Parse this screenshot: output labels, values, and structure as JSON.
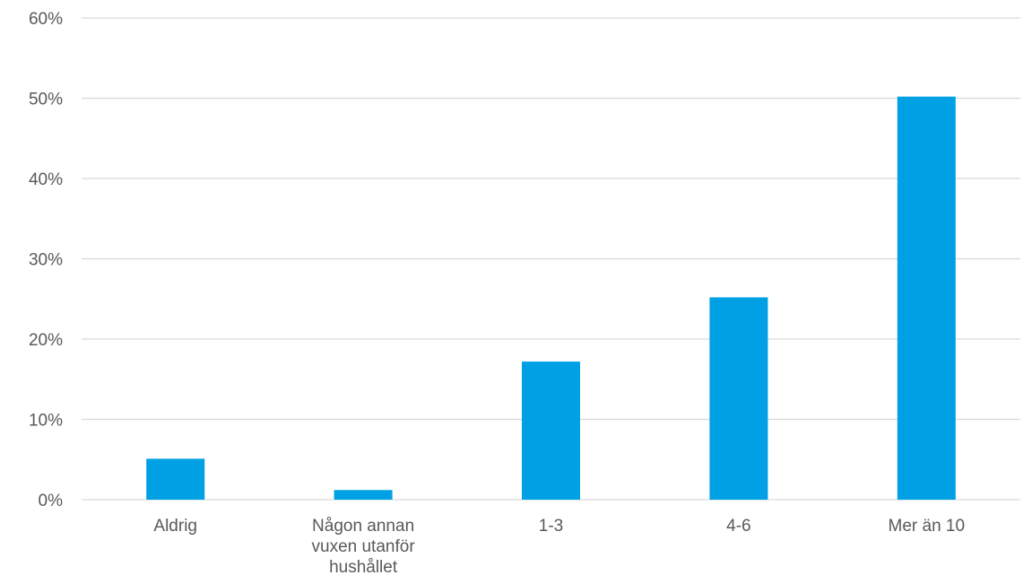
{
  "chart_data": {
    "type": "bar",
    "title": "",
    "xlabel": "",
    "ylabel": "",
    "categories": [
      [
        "Aldrig"
      ],
      [
        "Någon annan",
        "vuxen utanför",
        "hushållet"
      ],
      [
        "1-3"
      ],
      [
        "4-6"
      ],
      [
        "Mer än 10"
      ]
    ],
    "values": [
      5.1,
      1.2,
      17.2,
      25.2,
      50.2
    ],
    "ylim": [
      0,
      60
    ],
    "yticks": [
      0,
      10,
      20,
      30,
      40,
      50,
      60
    ],
    "ytick_labels": [
      "0%",
      "10%",
      "20%",
      "30%",
      "40%",
      "50%",
      "60%"
    ],
    "grid": true,
    "bar_color": "#00a0e4",
    "grid_color": "#d9d9d9",
    "text_color": "#595959"
  }
}
